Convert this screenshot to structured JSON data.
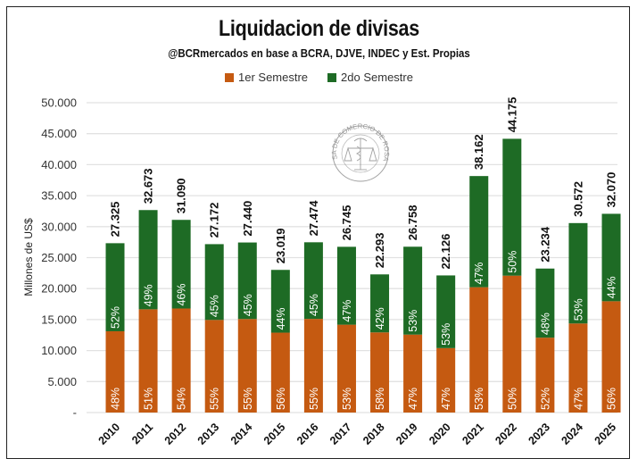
{
  "chart_data": {
    "type": "bar",
    "stacked": true,
    "title": "Liquidacion de divisas",
    "subtitle": "@BCRmercados  en base a BCRA,  DJVE, INDEC y Est. Propias",
    "xlabel": "",
    "ylabel": "Millones de US$",
    "ylim": [
      0,
      50000
    ],
    "yticks": [
      0,
      5000,
      10000,
      15000,
      20000,
      25000,
      30000,
      35000,
      40000,
      45000,
      50000
    ],
    "ytick_labels": [
      "-",
      "5.000",
      "10.000",
      "15.000",
      "20.000",
      "25.000",
      "30.000",
      "35.000",
      "40.000",
      "45.000",
      "50.000"
    ],
    "grid": true,
    "legend_position": "top-center",
    "categories": [
      "2010",
      "2011",
      "2012",
      "2013",
      "2014",
      "2015",
      "2016",
      "2017",
      "2018",
      "2019",
      "2020",
      "2021",
      "2022",
      "2023",
      "2024",
      "2025"
    ],
    "totals": [
      27325,
      32673,
      31090,
      27172,
      27440,
      23019,
      27474,
      26745,
      22293,
      26758,
      22126,
      38162,
      44175,
      23234,
      30572,
      32070
    ],
    "total_labels": [
      "27.325",
      "32.673",
      "31.090",
      "27.172",
      "27.440",
      "23.019",
      "27.474",
      "26.745",
      "22.293",
      "26.758",
      "22.126",
      "38.162",
      "44.175",
      "23.234",
      "30.572",
      "32.070"
    ],
    "series": [
      {
        "name": "1er Semestre",
        "color": "#C55A11",
        "pct": [
          48,
          51,
          54,
          55,
          55,
          56,
          55,
          53,
          58,
          47,
          47,
          53,
          50,
          52,
          47,
          56
        ],
        "pct_labels": [
          "48%",
          "51%",
          "54%",
          "55%",
          "55%",
          "56%",
          "55%",
          "53%",
          "58%",
          "47%",
          "47%",
          "53%",
          "50%",
          "52%",
          "47%",
          "56%"
        ]
      },
      {
        "name": "2do Semestre",
        "color": "#1E6B25",
        "pct": [
          52,
          49,
          46,
          45,
          45,
          44,
          45,
          47,
          42,
          53,
          53,
          47,
          50,
          48,
          53,
          44
        ],
        "pct_labels": [
          "52%",
          "49%",
          "46%",
          "45%",
          "45%",
          "44%",
          "45%",
          "47%",
          "42%",
          "53%",
          "53%",
          "47%",
          "50%",
          "48%",
          "53%",
          "44%"
        ]
      }
    ]
  },
  "watermark": {
    "text_top": "BOLSA DE COMERCIO DE",
    "text_bottom": "ROSARIO",
    "icon": "caduceus-scales-seal-icon"
  }
}
